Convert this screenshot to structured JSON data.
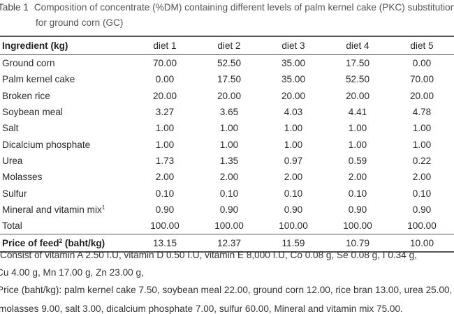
{
  "caption": {
    "label": "Table 1",
    "line1": "Composition of concentrate (%DM) containing different levels of palm kernel cake (PKC) substitution",
    "line2": "for ground corn (GC)"
  },
  "table": {
    "header": [
      "Ingredient (kg)",
      "diet 1",
      "diet 2",
      "diet 3",
      "diet 4",
      "diet 5"
    ],
    "rows": [
      {
        "name": "Ground corn",
        "sup": "",
        "values": [
          "70.00",
          "52.50",
          "35.00",
          "17.50",
          "0.00"
        ]
      },
      {
        "name": "Palm kernel cake",
        "sup": "",
        "values": [
          "0.00",
          "17.50",
          "35.00",
          "52.50",
          "70.00"
        ]
      },
      {
        "name": "Broken rice",
        "sup": "",
        "values": [
          "20.00",
          "20.00",
          "20.00",
          "20.00",
          "20.00"
        ]
      },
      {
        "name": "Soybean meal",
        "sup": "",
        "values": [
          "3.27",
          "3.65",
          "4.03",
          "4.41",
          "4.78"
        ]
      },
      {
        "name": "Salt",
        "sup": "",
        "values": [
          "1.00",
          "1.00",
          "1.00",
          "1.00",
          "1.00"
        ]
      },
      {
        "name": "Dicalcium phosphate",
        "sup": "",
        "values": [
          "1.00",
          "1.00",
          "1.00",
          "1.00",
          "1.00"
        ]
      },
      {
        "name": "Urea",
        "sup": "",
        "values": [
          "1.73",
          "1.35",
          "0.97",
          "0.59",
          "0.22"
        ]
      },
      {
        "name": "Molasses",
        "sup": "",
        "values": [
          "2.00",
          "2.00",
          "2.00",
          "2.00",
          "2.00"
        ]
      },
      {
        "name": "Sulfur",
        "sup": "",
        "values": [
          "0.10",
          "0.10",
          "0.10",
          "0.10",
          "0.10"
        ]
      },
      {
        "name": "Mineral and vitamin mix",
        "sup": "1",
        "values": [
          "0.90",
          "0.90",
          "0.90",
          "0.90",
          "0.90"
        ]
      },
      {
        "name": "Total",
        "sup": "",
        "values": [
          "100.00",
          "100.00",
          "100.00",
          "100.00",
          "100.00"
        ]
      }
    ],
    "price": {
      "name": "Price of feed",
      "sup": "2",
      "unit": " (baht/kg)",
      "values": [
        "13.15",
        "12.37",
        "11.59",
        "10.79",
        "10.00"
      ]
    }
  },
  "notes": [
    "Consist of vitamin A 2.50 I.U, vitamin D 0.50 I.U, vitamin E 8,000 I.U, Co 0.08 g, Se 0.08 g, I 0.34 g,",
    "Cu 4.00 g, Mn 17.00 g, Zn 23.00 g,",
    "Price (baht/kg): palm kernel cake 7.50, soybean meal 22.00, ground corn 12.00, rice bran 13.00, urea 25.00,",
    "molasses 9.00, salt 3.00, dicalcium phosphate 7.00, sulfur 60.00, Mineral and vitamin mix 75.00."
  ]
}
